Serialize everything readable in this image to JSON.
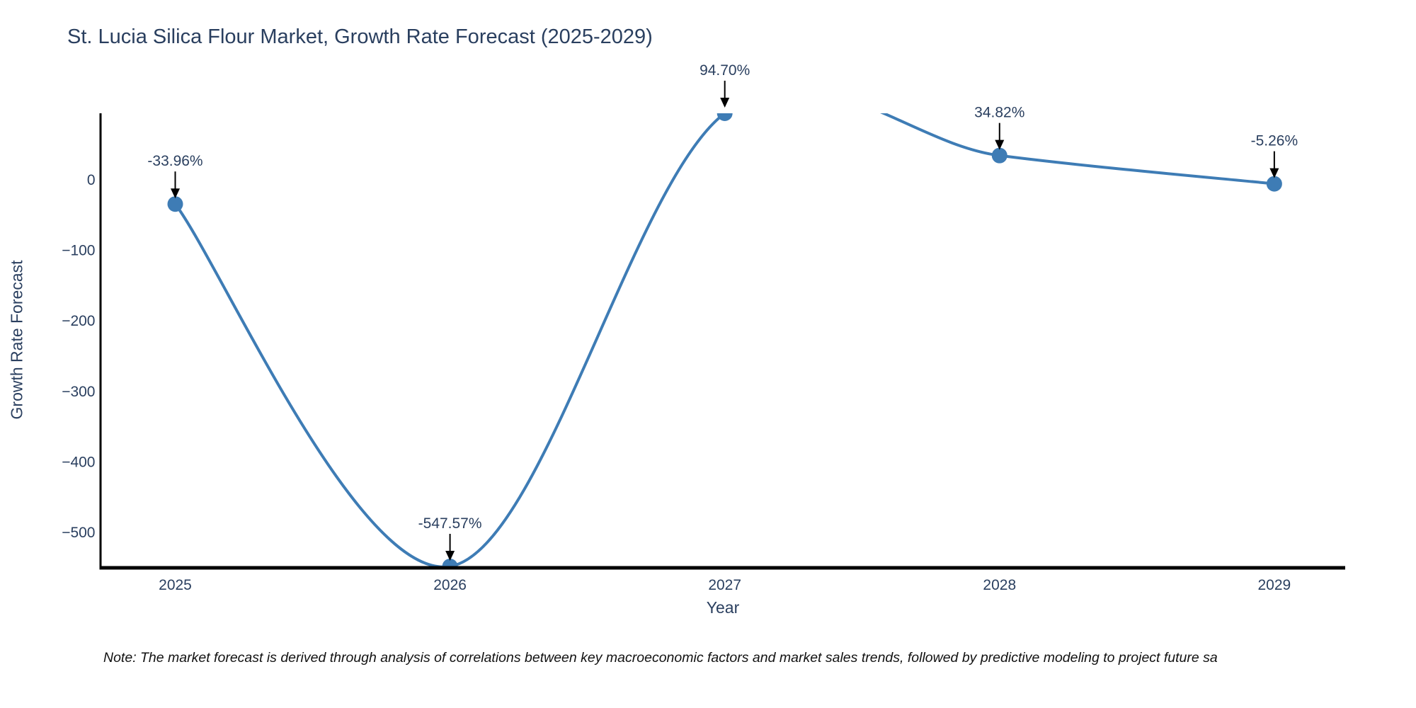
{
  "note": "Note: The market forecast is derived through analysis of correlations between key macroeconomic factors and market sales trends, followed by predictive modeling to project future sa",
  "chart_data": {
    "type": "line",
    "line_shape": "spline",
    "title": "St. Lucia Silica Flour Market, Growth Rate Forecast (2025-2029)",
    "xlabel": "Year",
    "ylabel": "Growth Rate Forecast",
    "x": [
      2025,
      2026,
      2027,
      2028,
      2029
    ],
    "values": [
      -33.96,
      -547.57,
      94.7,
      34.82,
      -5.26
    ],
    "point_labels": [
      "-33.96%",
      "-547.57%",
      "94.70%",
      "34.82%",
      "-5.26%"
    ],
    "x_tick_labels": [
      "2025",
      "2026",
      "2027",
      "2028",
      "2029"
    ],
    "y_ticks": [
      0,
      -100,
      -200,
      -300,
      -400,
      -500
    ],
    "y_tick_labels": [
      "0",
      "−100",
      "−200",
      "−300",
      "−400",
      "−500"
    ],
    "xlim": [
      2024.732,
      2029.258
    ],
    "ylim": [
      -547.57,
      94.7
    ],
    "grid": false,
    "legend": false,
    "colors": {
      "line": "#3e7cb5",
      "marker": "#3e7cb5",
      "text": "#2a3f5f",
      "axis": "#000000",
      "arrow": "#000000"
    }
  }
}
